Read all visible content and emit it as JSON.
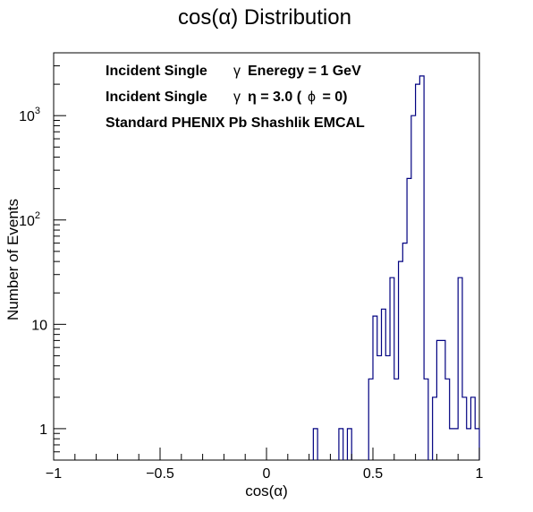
{
  "chart_data": {
    "type": "histogram",
    "title": "cos(α) Distribution",
    "xlabel": "cos(α)",
    "ylabel": "Number of Events",
    "xlim": [
      -1,
      1
    ],
    "ylim": [
      0.5,
      4000
    ],
    "yscale": "log",
    "grid": false,
    "legend": "none",
    "line_color": "#000080",
    "x_ticks": [
      {
        "value": -1,
        "label": "−1"
      },
      {
        "value": -0.5,
        "label": "−0.5"
      },
      {
        "value": 0,
        "label": "0"
      },
      {
        "value": 0.5,
        "label": "0.5"
      },
      {
        "value": 1,
        "label": "1"
      }
    ],
    "y_ticks": [
      {
        "value": 1,
        "label": "1"
      },
      {
        "value": 10,
        "label": "10"
      },
      {
        "value": 100,
        "label": "10",
        "exponent": "2"
      },
      {
        "value": 1000,
        "label": "10",
        "exponent": "3"
      }
    ],
    "bins": {
      "xmin": -1,
      "width": 0.02,
      "nonzero": [
        {
          "x": 0.22,
          "y": 1
        },
        {
          "x": 0.34,
          "y": 1
        },
        {
          "x": 0.38,
          "y": 1
        },
        {
          "x": 0.48,
          "y": 3
        },
        {
          "x": 0.5,
          "y": 12
        },
        {
          "x": 0.52,
          "y": 5
        },
        {
          "x": 0.54,
          "y": 14
        },
        {
          "x": 0.56,
          "y": 5
        },
        {
          "x": 0.58,
          "y": 28
        },
        {
          "x": 0.6,
          "y": 3
        },
        {
          "x": 0.62,
          "y": 40
        },
        {
          "x": 0.64,
          "y": 60
        },
        {
          "x": 0.66,
          "y": 250
        },
        {
          "x": 0.68,
          "y": 1000
        },
        {
          "x": 0.7,
          "y": 2000
        },
        {
          "x": 0.72,
          "y": 2400
        },
        {
          "x": 0.74,
          "y": 3
        },
        {
          "x": 0.78,
          "y": 2
        },
        {
          "x": 0.8,
          "y": 7
        },
        {
          "x": 0.82,
          "y": 7
        },
        {
          "x": 0.84,
          "y": 3
        },
        {
          "x": 0.86,
          "y": 1
        },
        {
          "x": 0.88,
          "y": 1
        },
        {
          "x": 0.9,
          "y": 28
        },
        {
          "x": 0.92,
          "y": 2
        },
        {
          "x": 0.94,
          "y": 1
        },
        {
          "x": 0.96,
          "y": 2
        },
        {
          "x": 0.98,
          "y": 1
        }
      ]
    },
    "annotations": [
      {
        "parts": [
          "Incident Single",
          "γ",
          "Eneregy = 1 GeV"
        ]
      },
      {
        "parts": [
          "Incident Single",
          "γ",
          "η = 3.0 (",
          "ϕ",
          " = 0)"
        ]
      },
      {
        "parts": [
          "Standard PHENIX Pb Shashlik EMCAL"
        ]
      }
    ]
  }
}
